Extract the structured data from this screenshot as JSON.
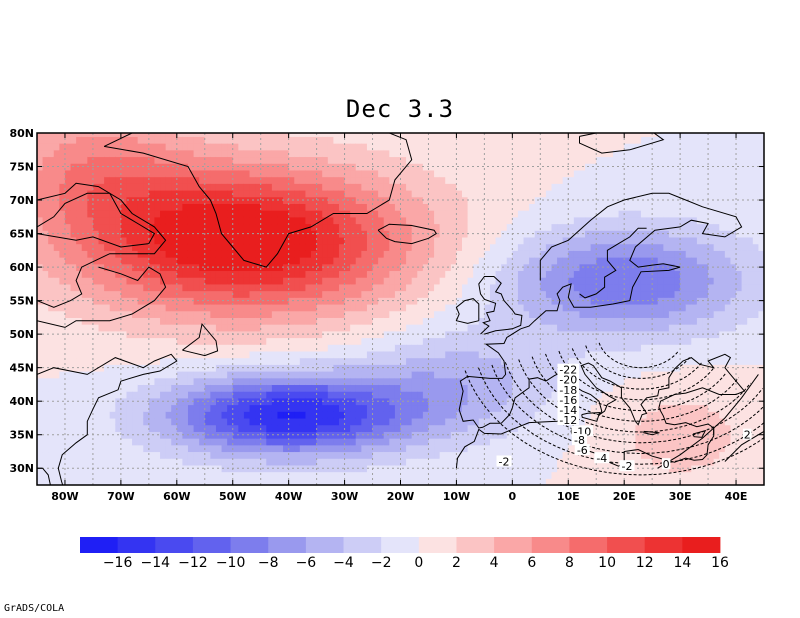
{
  "title": "Dec 3.3",
  "credit": "GrADS/COLA",
  "map": {
    "projection": "latlon",
    "lon_range": [
      -85,
      45
    ],
    "lat_range": [
      27.5,
      80
    ],
    "lon_ticks": [
      {
        "value": -80,
        "label": "80W"
      },
      {
        "value": -70,
        "label": "70W"
      },
      {
        "value": -60,
        "label": "60W"
      },
      {
        "value": -50,
        "label": "50W"
      },
      {
        "value": -40,
        "label": "40W"
      },
      {
        "value": -30,
        "label": "30W"
      },
      {
        "value": -20,
        "label": "20W"
      },
      {
        "value": -10,
        "label": "10W"
      },
      {
        "value": 0,
        "label": "0"
      },
      {
        "value": 10,
        "label": "10E"
      },
      {
        "value": 20,
        "label": "20E"
      },
      {
        "value": 30,
        "label": "30E"
      },
      {
        "value": 40,
        "label": "40E"
      }
    ],
    "lat_ticks": [
      {
        "value": 30,
        "label": "30N"
      },
      {
        "value": 35,
        "label": "35N"
      },
      {
        "value": 40,
        "label": "40N"
      },
      {
        "value": 45,
        "label": "45N"
      },
      {
        "value": 50,
        "label": "50N"
      },
      {
        "value": 55,
        "label": "55N"
      },
      {
        "value": 60,
        "label": "60N"
      },
      {
        "value": 65,
        "label": "65N"
      },
      {
        "value": 70,
        "label": "70N"
      },
      {
        "value": 75,
        "label": "75N"
      },
      {
        "value": 80,
        "label": "80N"
      }
    ],
    "grid": true,
    "field_centers": [
      {
        "lon": -48,
        "lat": 64,
        "amp": 17,
        "sx": 30,
        "sy": 11
      },
      {
        "lon": -75,
        "lat": 75,
        "amp": 6,
        "sx": 18,
        "sy": 10
      },
      {
        "lon": -40,
        "lat": 38,
        "amp": -16,
        "sx": 22,
        "sy": 6
      },
      {
        "lon": -10,
        "lat": 43,
        "amp": -5,
        "sx": 18,
        "sy": 8
      },
      {
        "lon": 20,
        "lat": 58,
        "amp": -10,
        "sx": 22,
        "sy": 8
      },
      {
        "lon": 30,
        "lat": 35,
        "amp": 3,
        "sx": 14,
        "sy": 8
      }
    ],
    "contour_labels": [
      {
        "text": "-22",
        "lon": 10,
        "lat": 44.7
      },
      {
        "text": "-20",
        "lon": 10,
        "lat": 43.2
      },
      {
        "text": "-18",
        "lon": 10,
        "lat": 41.7
      },
      {
        "text": "-16",
        "lon": 10,
        "lat": 40.2
      },
      {
        "text": "-14",
        "lon": 10,
        "lat": 38.7
      },
      {
        "text": "-12",
        "lon": 10,
        "lat": 37.2
      },
      {
        "text": "-10",
        "lon": 12.5,
        "lat": 35.5
      },
      {
        "text": "-8",
        "lon": 12,
        "lat": 34.2
      },
      {
        "text": "-6",
        "lon": 12.5,
        "lat": 32.7
      },
      {
        "text": "-4",
        "lon": 16,
        "lat": 31.5
      },
      {
        "text": "-2",
        "lon": 20.5,
        "lat": 30.3
      },
      {
        "text": "-2",
        "lon": -1.5,
        "lat": 31
      },
      {
        "text": "0",
        "lon": 27.5,
        "lat": 30.6
      },
      {
        "text": "2",
        "lon": 42,
        "lat": 35
      }
    ]
  },
  "colorbar": {
    "levels": [
      -16,
      -14,
      -12,
      -10,
      -8,
      -6,
      -4,
      -2,
      0,
      2,
      4,
      6,
      8,
      10,
      12,
      14,
      16
    ],
    "labels": [
      "−16",
      "−14",
      "−12",
      "−10",
      "−8",
      "−6",
      "−4",
      "−2",
      "0",
      "2",
      "4",
      "6",
      "8",
      "10",
      "12",
      "14",
      "16"
    ],
    "colors": [
      "#1f1ff5",
      "#3434f2",
      "#4a4af0",
      "#6262ee",
      "#7d7ded",
      "#9999ee",
      "#b4b4f2",
      "#cdcdf6",
      "#e4e4fa",
      "#fce2e2",
      "#fbc4c4",
      "#faa7a7",
      "#f88a8a",
      "#f56c6c",
      "#f14f4f",
      "#ed3333",
      "#e91e1e"
    ]
  }
}
